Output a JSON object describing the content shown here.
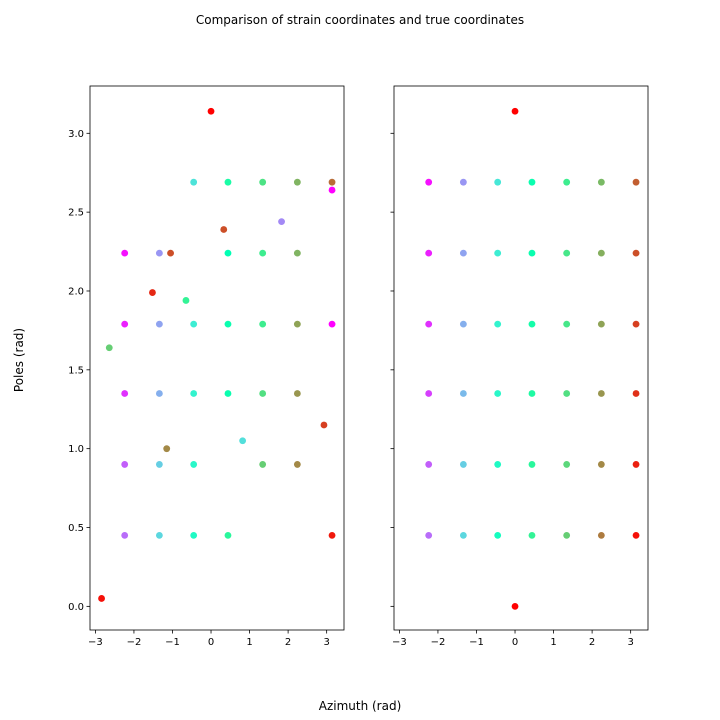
{
  "figure": {
    "title": "Comparison of strain coordinates and true coordinates",
    "xlabel": "Azimuth (rad)",
    "ylabel": "Poles (rad)"
  },
  "chart_data": [
    {
      "type": "scatter",
      "panel": "left",
      "xlim": [
        -3.14,
        3.45
      ],
      "ylim": [
        -0.15,
        3.3
      ],
      "xticks": [
        -3,
        -2,
        -1,
        0,
        1,
        2,
        3
      ],
      "xtick_labels": [
        "−3",
        "−2",
        "−1",
        "0",
        "1",
        "2",
        "3"
      ],
      "yticks": [
        0.0,
        0.5,
        1.0,
        1.5,
        2.0,
        2.5,
        3.0
      ],
      "ytick_labels": [
        "0.0",
        "0.5",
        "1.0",
        "1.5",
        "2.0",
        "2.5",
        "3.0"
      ],
      "colormap": "rainbow",
      "grid": false,
      "points": [
        {
          "x": 0.0,
          "y": 3.14,
          "c": 1.0
        },
        {
          "x": -0.45,
          "y": 2.69,
          "c": 0.35
        },
        {
          "x": 0.44,
          "y": 2.69,
          "c": 0.55
        },
        {
          "x": 1.34,
          "y": 2.69,
          "c": 0.65
        },
        {
          "x": 2.24,
          "y": 2.69,
          "c": 0.75
        },
        {
          "x": 3.14,
          "y": 2.69,
          "c": 0.86
        },
        {
          "x": 3.14,
          "y": 2.64,
          "c": 0.0
        },
        {
          "x": 1.83,
          "y": 2.44,
          "c": 0.18
        },
        {
          "x": 0.33,
          "y": 2.39,
          "c": 0.9
        },
        {
          "x": -2.24,
          "y": 2.24,
          "c": 0.02
        },
        {
          "x": -1.34,
          "y": 2.24,
          "c": 0.2
        },
        {
          "x": -1.05,
          "y": 2.24,
          "c": 0.9
        },
        {
          "x": 0.44,
          "y": 2.24,
          "c": 0.5
        },
        {
          "x": 1.34,
          "y": 2.24,
          "c": 0.62
        },
        {
          "x": 2.24,
          "y": 2.24,
          "c": 0.75
        },
        {
          "x": -1.52,
          "y": 1.99,
          "c": 0.95
        },
        {
          "x": -0.65,
          "y": 1.94,
          "c": 0.6
        },
        {
          "x": -2.24,
          "y": 1.79,
          "c": 0.04
        },
        {
          "x": -1.34,
          "y": 1.79,
          "c": 0.22
        },
        {
          "x": -0.45,
          "y": 1.79,
          "c": 0.38
        },
        {
          "x": 0.44,
          "y": 1.79,
          "c": 0.52
        },
        {
          "x": 1.34,
          "y": 1.79,
          "c": 0.62
        },
        {
          "x": 2.24,
          "y": 1.79,
          "c": 0.78
        },
        {
          "x": 3.14,
          "y": 1.79,
          "c": 0.0
        },
        {
          "x": -2.64,
          "y": 1.64,
          "c": 0.7
        },
        {
          "x": -2.24,
          "y": 1.35,
          "c": 0.06
        },
        {
          "x": -1.34,
          "y": 1.35,
          "c": 0.24
        },
        {
          "x": -0.45,
          "y": 1.35,
          "c": 0.4
        },
        {
          "x": 0.44,
          "y": 1.35,
          "c": 0.52
        },
        {
          "x": 1.34,
          "y": 1.35,
          "c": 0.66
        },
        {
          "x": 2.24,
          "y": 1.35,
          "c": 0.8
        },
        {
          "x": 2.93,
          "y": 1.15,
          "c": 0.92
        },
        {
          "x": 0.82,
          "y": 1.05,
          "c": 0.34
        },
        {
          "x": -1.15,
          "y": 1.0,
          "c": 0.82
        },
        {
          "x": -2.24,
          "y": 0.9,
          "c": 0.12
        },
        {
          "x": -1.34,
          "y": 0.9,
          "c": 0.3
        },
        {
          "x": -0.45,
          "y": 0.9,
          "c": 0.42
        },
        {
          "x": 1.34,
          "y": 0.9,
          "c": 0.7
        },
        {
          "x": 2.24,
          "y": 0.9,
          "c": 0.82
        },
        {
          "x": -2.24,
          "y": 0.45,
          "c": 0.14
        },
        {
          "x": -1.34,
          "y": 0.45,
          "c": 0.32
        },
        {
          "x": -0.45,
          "y": 0.45,
          "c": 0.44
        },
        {
          "x": 0.44,
          "y": 0.45,
          "c": 0.58
        },
        {
          "x": 3.14,
          "y": 0.45,
          "c": 0.97
        },
        {
          "x": -2.84,
          "y": 0.05,
          "c": 0.98
        }
      ]
    },
    {
      "type": "scatter",
      "panel": "right",
      "xlim": [
        -3.14,
        3.45
      ],
      "ylim": [
        -0.15,
        3.3
      ],
      "xticks": [
        -3,
        -2,
        -1,
        0,
        1,
        2,
        3
      ],
      "xtick_labels": [
        "−3",
        "−2",
        "−1",
        "0",
        "1",
        "2",
        "3"
      ],
      "yticks": [
        0.0,
        0.5,
        1.0,
        1.5,
        2.0,
        2.5,
        3.0
      ],
      "ytick_labels": [],
      "sharey": true,
      "colormap": "rainbow",
      "grid": false,
      "points": [
        {
          "x": 0.0,
          "y": 3.14,
          "c": 1.0
        },
        {
          "x": -2.24,
          "y": 2.69,
          "c": 0.02
        },
        {
          "x": -1.34,
          "y": 2.69,
          "c": 0.2
        },
        {
          "x": -0.45,
          "y": 2.69,
          "c": 0.36
        },
        {
          "x": 0.44,
          "y": 2.69,
          "c": 0.52
        },
        {
          "x": 1.34,
          "y": 2.69,
          "c": 0.62
        },
        {
          "x": 2.24,
          "y": 2.69,
          "c": 0.74
        },
        {
          "x": 3.14,
          "y": 2.69,
          "c": 0.88
        },
        {
          "x": -2.24,
          "y": 2.24,
          "c": 0.04
        },
        {
          "x": -1.34,
          "y": 2.24,
          "c": 0.22
        },
        {
          "x": -0.45,
          "y": 2.24,
          "c": 0.38
        },
        {
          "x": 0.44,
          "y": 2.24,
          "c": 0.52
        },
        {
          "x": 1.34,
          "y": 2.24,
          "c": 0.64
        },
        {
          "x": 2.24,
          "y": 2.24,
          "c": 0.76
        },
        {
          "x": 3.14,
          "y": 2.24,
          "c": 0.9
        },
        {
          "x": -2.24,
          "y": 1.79,
          "c": 0.06
        },
        {
          "x": -1.34,
          "y": 1.79,
          "c": 0.24
        },
        {
          "x": -0.45,
          "y": 1.79,
          "c": 0.4
        },
        {
          "x": 0.44,
          "y": 1.79,
          "c": 0.54
        },
        {
          "x": 1.34,
          "y": 1.79,
          "c": 0.64
        },
        {
          "x": 2.24,
          "y": 1.79,
          "c": 0.78
        },
        {
          "x": 3.14,
          "y": 1.79,
          "c": 0.92
        },
        {
          "x": -2.24,
          "y": 1.35,
          "c": 0.08
        },
        {
          "x": -1.34,
          "y": 1.35,
          "c": 0.26
        },
        {
          "x": -0.45,
          "y": 1.35,
          "c": 0.42
        },
        {
          "x": 0.44,
          "y": 1.35,
          "c": 0.56
        },
        {
          "x": 1.34,
          "y": 1.35,
          "c": 0.66
        },
        {
          "x": 2.24,
          "y": 1.35,
          "c": 0.8
        },
        {
          "x": 3.14,
          "y": 1.35,
          "c": 0.94
        },
        {
          "x": -2.24,
          "y": 0.9,
          "c": 0.12
        },
        {
          "x": -1.34,
          "y": 0.9,
          "c": 0.3
        },
        {
          "x": -0.45,
          "y": 0.9,
          "c": 0.44
        },
        {
          "x": 0.44,
          "y": 0.9,
          "c": 0.58
        },
        {
          "x": 1.34,
          "y": 0.9,
          "c": 0.68
        },
        {
          "x": 2.24,
          "y": 0.9,
          "c": 0.82
        },
        {
          "x": 3.14,
          "y": 0.9,
          "c": 0.96
        },
        {
          "x": -2.24,
          "y": 0.45,
          "c": 0.14
        },
        {
          "x": -1.34,
          "y": 0.45,
          "c": 0.32
        },
        {
          "x": -0.45,
          "y": 0.45,
          "c": 0.46
        },
        {
          "x": 0.44,
          "y": 0.45,
          "c": 0.6
        },
        {
          "x": 1.34,
          "y": 0.45,
          "c": 0.7
        },
        {
          "x": 2.24,
          "y": 0.45,
          "c": 0.84
        },
        {
          "x": 3.14,
          "y": 0.45,
          "c": 0.98
        },
        {
          "x": 0.0,
          "y": 0.0,
          "c": 1.0
        }
      ]
    }
  ]
}
